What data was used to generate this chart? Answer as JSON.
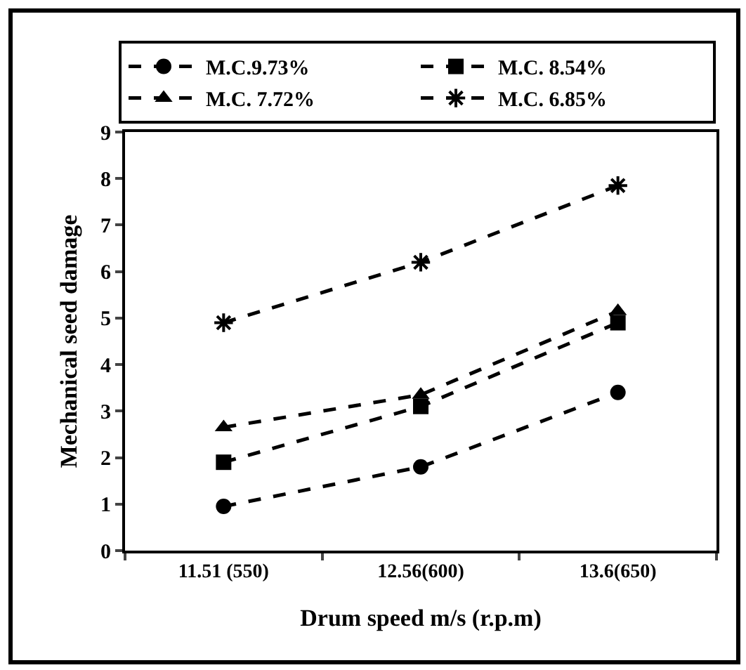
{
  "chart_data": {
    "type": "line",
    "xlabel": "Drum speed m/s (r.p.m)",
    "ylabel": "Mechanical seed damage",
    "categories": [
      "11.51 (550)",
      "12.56(600)",
      "13.6(650)"
    ],
    "ylim": [
      0,
      9
    ],
    "yticks": [
      0,
      1,
      2,
      3,
      4,
      5,
      6,
      7,
      8,
      9
    ],
    "grid": false,
    "legend": "top",
    "line_style": "dashed",
    "series": [
      {
        "name": "M.C.9.73%",
        "color": "#000000",
        "marker": "circle",
        "values": [
          0.95,
          1.8,
          3.4
        ]
      },
      {
        "name": "M.C. 8.54%",
        "color": "#000000",
        "marker": "square",
        "values": [
          1.9,
          3.1,
          4.9
        ]
      },
      {
        "name": "M.C. 7.72%",
        "color": "#000000",
        "marker": "triangle",
        "values": [
          2.65,
          3.35,
          5.15
        ]
      },
      {
        "name": "M.C. 6.85%",
        "color": "#000000",
        "marker": "cross",
        "values": [
          4.9,
          6.2,
          7.85
        ]
      }
    ]
  }
}
